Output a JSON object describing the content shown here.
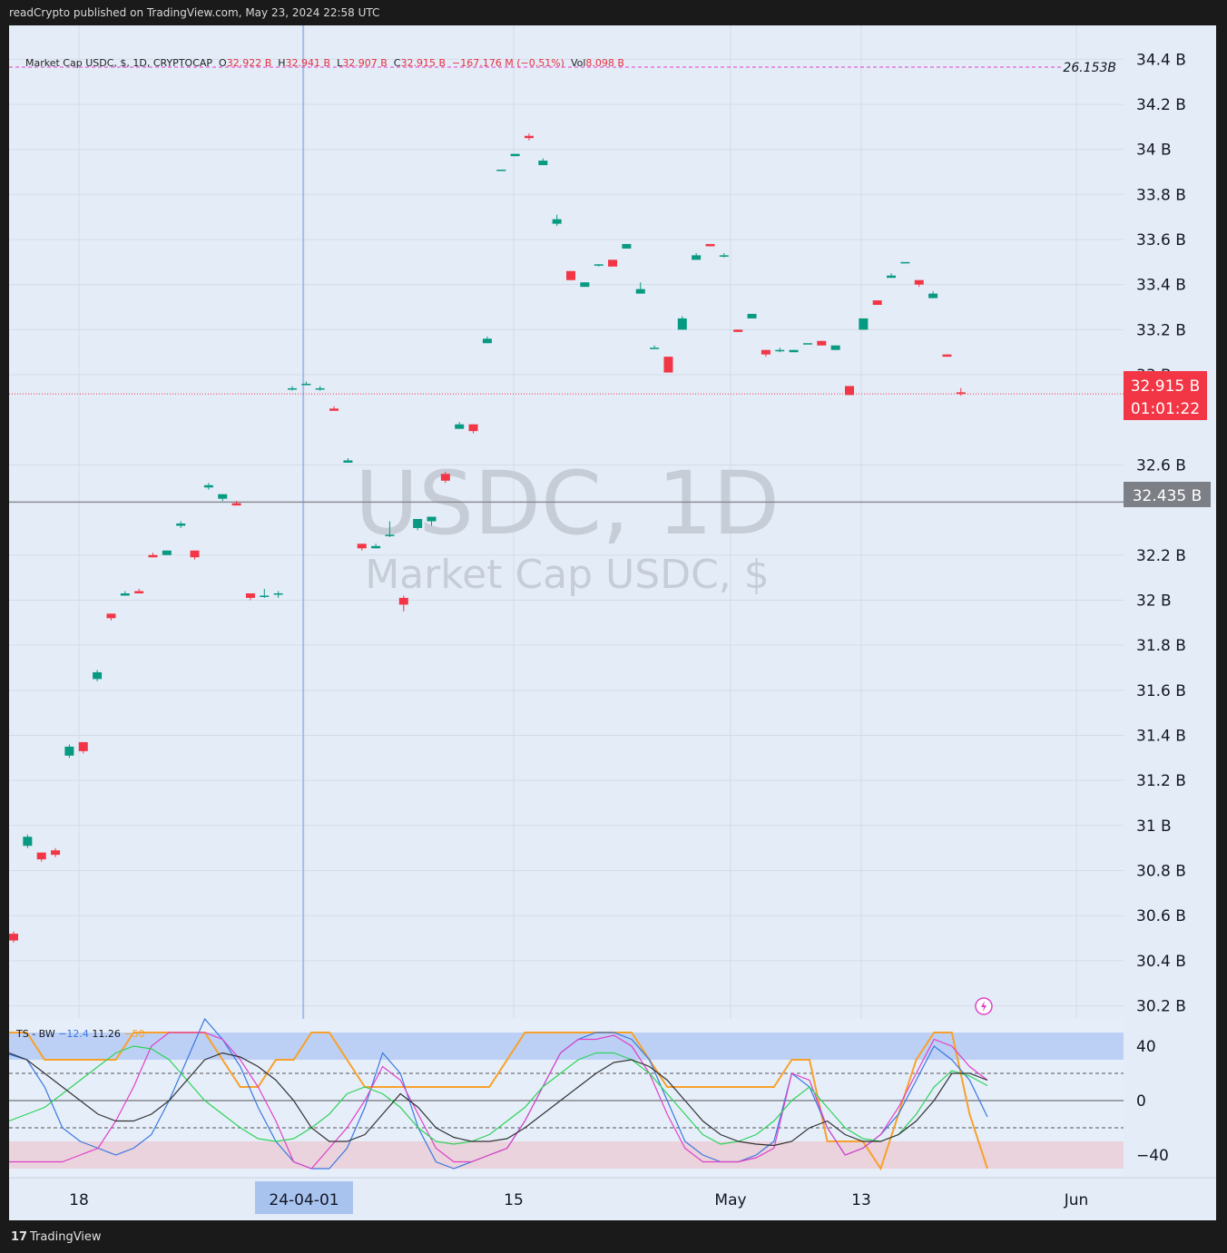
{
  "header": {
    "published": "readCrypto published on TradingView.com, May 23, 2024 22:58 UTC"
  },
  "legend": {
    "symbol": "Market Cap USDC, $, 1D, CRYPTOCAP",
    "open_label": "O",
    "open": "32.922 B",
    "high_label": "H",
    "high": "32.941 B",
    "low_label": "L",
    "low": "32.907 B",
    "close_label": "C",
    "close": "32.915 B",
    "change": "−167.176 M (−0.51%)",
    "vol_label": "Vol",
    "vol": "8.098 B"
  },
  "watermark": {
    "line1": "USDC, 1D",
    "line2": "Market Cap USDC, $"
  },
  "price_tags": {
    "current_price": "32.915 B",
    "countdown": "01:01:22",
    "level": "32.435 B",
    "dashed_level": "26.153B"
  },
  "indicator": {
    "label": "TS - BW",
    "v1": "−12.4",
    "v2": "11.26",
    "v3": "−50",
    "ticks": [
      "40",
      "0",
      "−40"
    ]
  },
  "x_axis": {
    "labels": [
      "18",
      "24-04-01",
      "15",
      "May",
      "13",
      "Jun"
    ],
    "highlighted": "24-04-01"
  },
  "footer": {
    "brand": "TradingView"
  },
  "colors": {
    "up": "#089981",
    "down": "#f23645",
    "background": "#e4ecf8",
    "magenta": "#e040c8",
    "orange": "#f7a12a",
    "blue": "#3a78e0",
    "green": "#2fd35a",
    "black": "#333333"
  },
  "chart_data": {
    "type": "candlestick",
    "y_unit": "B",
    "ylim": [
      30.15,
      34.55
    ],
    "y_ticks": [
      30.2,
      30.4,
      30.6,
      30.8,
      31.0,
      31.2,
      31.4,
      31.6,
      31.8,
      32.0,
      32.2,
      32.6,
      33.0,
      33.2,
      33.4,
      33.6,
      33.8,
      34.0,
      34.2,
      34.4
    ],
    "y_tick_labels": [
      "30.2 B",
      "30.4 B",
      "30.6 B",
      "30.8 B",
      "31 B",
      "31.2 B",
      "31.4 B",
      "31.6 B",
      "31.8 B",
      "32 B",
      "32.2 B",
      "32.6 B",
      "33 B",
      "33.2 B",
      "33.4 B",
      "33.6 B",
      "33.8 B",
      "34 B",
      "34.2 B",
      "34.4 B"
    ],
    "horizontal_levels": [
      {
        "value": 32.435,
        "style": "solid"
      },
      {
        "value": 32.915,
        "style": "dotted-red"
      }
    ],
    "candles": [
      {
        "o": 30.52,
        "h": 30.53,
        "l": 30.48,
        "c": 30.49
      },
      {
        "o": 30.91,
        "h": 30.96,
        "l": 30.9,
        "c": 30.95
      },
      {
        "o": 30.88,
        "h": 30.88,
        "l": 30.84,
        "c": 30.85
      },
      {
        "o": 30.89,
        "h": 30.9,
        "l": 30.86,
        "c": 30.87
      },
      {
        "o": 31.31,
        "h": 31.36,
        "l": 31.3,
        "c": 31.35
      },
      {
        "o": 31.37,
        "h": 31.37,
        "l": 31.32,
        "c": 31.33
      },
      {
        "o": 31.65,
        "h": 31.69,
        "l": 31.64,
        "c": 31.68
      },
      {
        "o": 31.94,
        "h": 31.94,
        "l": 31.91,
        "c": 31.92
      },
      {
        "o": 32.02,
        "h": 32.04,
        "l": 32.02,
        "c": 32.03
      },
      {
        "o": 32.04,
        "h": 32.05,
        "l": 32.03,
        "c": 32.03
      },
      {
        "o": 32.2,
        "h": 32.21,
        "l": 32.19,
        "c": 32.19
      },
      {
        "o": 32.2,
        "h": 32.22,
        "l": 32.2,
        "c": 32.22
      },
      {
        "o": 32.33,
        "h": 32.35,
        "l": 32.32,
        "c": 32.34
      },
      {
        "o": 32.22,
        "h": 32.22,
        "l": 32.18,
        "c": 32.19
      },
      {
        "o": 32.5,
        "h": 32.52,
        "l": 32.49,
        "c": 32.51
      },
      {
        "o": 32.45,
        "h": 32.47,
        "l": 32.44,
        "c": 32.47
      },
      {
        "o": 32.43,
        "h": 32.44,
        "l": 32.42,
        "c": 32.42
      },
      {
        "o": 32.03,
        "h": 32.03,
        "l": 32.0,
        "c": 32.01
      },
      {
        "o": 32.02,
        "h": 32.05,
        "l": 32.01,
        "c": 32.02
      },
      {
        "o": 32.03,
        "h": 32.04,
        "l": 32.01,
        "c": 32.03
      },
      {
        "o": 32.94,
        "h": 32.95,
        "l": 32.93,
        "c": 32.94
      },
      {
        "o": 32.96,
        "h": 32.97,
        "l": 32.96,
        "c": 32.96
      },
      {
        "o": 32.94,
        "h": 32.95,
        "l": 32.93,
        "c": 32.94
      },
      {
        "o": 32.85,
        "h": 32.86,
        "l": 32.84,
        "c": 32.84
      },
      {
        "o": 32.61,
        "h": 32.63,
        "l": 32.61,
        "c": 32.62
      },
      {
        "o": 32.25,
        "h": 32.25,
        "l": 32.22,
        "c": 32.23
      },
      {
        "o": 32.23,
        "h": 32.25,
        "l": 32.23,
        "c": 32.24
      },
      {
        "o": 32.29,
        "h": 32.35,
        "l": 32.28,
        "c": 32.29
      },
      {
        "o": 32.01,
        "h": 32.02,
        "l": 31.95,
        "c": 31.98
      },
      {
        "o": 32.32,
        "h": 32.36,
        "l": 32.31,
        "c": 32.36
      },
      {
        "o": 32.35,
        "h": 32.37,
        "l": 32.33,
        "c": 32.37
      },
      {
        "o": 32.56,
        "h": 32.57,
        "l": 32.52,
        "c": 32.53
      },
      {
        "o": 32.76,
        "h": 32.79,
        "l": 32.76,
        "c": 32.78
      },
      {
        "o": 32.78,
        "h": 32.78,
        "l": 32.74,
        "c": 32.75
      },
      {
        "o": 33.14,
        "h": 33.17,
        "l": 33.14,
        "c": 33.16
      },
      {
        "o": 33.91,
        "h": 33.91,
        "l": 33.91,
        "c": 33.91
      },
      {
        "o": 33.97,
        "h": 33.98,
        "l": 33.97,
        "c": 33.98
      },
      {
        "o": 34.06,
        "h": 34.07,
        "l": 34.04,
        "c": 34.05
      },
      {
        "o": 33.93,
        "h": 33.96,
        "l": 33.93,
        "c": 33.95
      },
      {
        "o": 33.67,
        "h": 33.71,
        "l": 33.66,
        "c": 33.69
      },
      {
        "o": 33.46,
        "h": 33.46,
        "l": 33.42,
        "c": 33.42
      },
      {
        "o": 33.39,
        "h": 33.41,
        "l": 33.39,
        "c": 33.41
      },
      {
        "o": 33.49,
        "h": 33.49,
        "l": 33.48,
        "c": 33.49
      },
      {
        "o": 33.51,
        "h": 33.51,
        "l": 33.48,
        "c": 33.48
      },
      {
        "o": 33.56,
        "h": 33.58,
        "l": 33.56,
        "c": 33.58
      },
      {
        "o": 33.36,
        "h": 33.41,
        "l": 33.36,
        "c": 33.38
      },
      {
        "o": 33.12,
        "h": 33.13,
        "l": 33.12,
        "c": 33.12
      },
      {
        "o": 33.08,
        "h": 33.08,
        "l": 33.01,
        "c": 33.01
      },
      {
        "o": 33.2,
        "h": 33.26,
        "l": 33.2,
        "c": 33.25
      },
      {
        "o": 33.51,
        "h": 33.54,
        "l": 33.51,
        "c": 33.53
      },
      {
        "o": 33.58,
        "h": 33.58,
        "l": 33.57,
        "c": 33.57
      },
      {
        "o": 33.53,
        "h": 33.54,
        "l": 33.52,
        "c": 33.53
      },
      {
        "o": 33.2,
        "h": 33.2,
        "l": 33.19,
        "c": 33.19
      },
      {
        "o": 33.25,
        "h": 33.27,
        "l": 33.25,
        "c": 33.27
      },
      {
        "o": 33.11,
        "h": 33.11,
        "l": 33.08,
        "c": 33.09
      },
      {
        "o": 33.11,
        "h": 33.12,
        "l": 33.1,
        "c": 33.11
      },
      {
        "o": 33.1,
        "h": 33.11,
        "l": 33.1,
        "c": 33.11
      },
      {
        "o": 33.14,
        "h": 33.14,
        "l": 33.14,
        "c": 33.14
      },
      {
        "o": 33.15,
        "h": 33.15,
        "l": 33.13,
        "c": 33.13
      },
      {
        "o": 33.11,
        "h": 33.13,
        "l": 33.11,
        "c": 33.13
      },
      {
        "o": 32.95,
        "h": 32.95,
        "l": 32.91,
        "c": 32.91
      },
      {
        "o": 33.2,
        "h": 33.25,
        "l": 33.2,
        "c": 33.25
      },
      {
        "o": 33.33,
        "h": 33.33,
        "l": 33.31,
        "c": 33.31
      },
      {
        "o": 33.43,
        "h": 33.45,
        "l": 33.43,
        "c": 33.44
      },
      {
        "o": 33.5,
        "h": 33.5,
        "l": 33.5,
        "c": 33.5
      },
      {
        "o": 33.42,
        "h": 33.42,
        "l": 33.39,
        "c": 33.4
      },
      {
        "o": 33.34,
        "h": 33.37,
        "l": 33.34,
        "c": 33.36
      },
      {
        "o": 33.09,
        "h": 33.09,
        "l": 33.08,
        "c": 33.08
      },
      {
        "o": 32.922,
        "h": 32.941,
        "l": 32.907,
        "c": 32.915
      }
    ],
    "oscillator": {
      "ylim": [
        -50,
        50
      ],
      "bands": [
        {
          "from": 30,
          "to": 50,
          "color": "blue"
        },
        {
          "from": -30,
          "to": -50,
          "color": "red"
        }
      ],
      "levels": [
        20,
        0,
        -20
      ],
      "blue": [
        34,
        30,
        10,
        -20,
        -30,
        -35,
        -40,
        -35,
        -25,
        0,
        30,
        60,
        45,
        25,
        -5,
        -30,
        -45,
        -50,
        -50,
        -35,
        -5,
        35,
        20,
        -20,
        -45,
        -50,
        -45,
        -40,
        -35,
        -15,
        10,
        35,
        45,
        50,
        50,
        45,
        30,
        0,
        -30,
        -40,
        -45,
        -45,
        -40,
        -30,
        20,
        10,
        -20,
        -40,
        -35,
        -25,
        -10,
        15,
        40,
        30,
        15,
        -12
      ],
      "magenta": [
        -45,
        -45,
        -45,
        -45,
        -40,
        -35,
        -15,
        10,
        40,
        50,
        50,
        50,
        45,
        30,
        10,
        -15,
        -45,
        -50,
        -35,
        -20,
        0,
        25,
        15,
        -10,
        -35,
        -45,
        -45,
        -40,
        -35,
        -15,
        10,
        35,
        45,
        45,
        48,
        40,
        20,
        -10,
        -35,
        -45,
        -45,
        -45,
        -42,
        -35,
        20,
        15,
        -20,
        -40,
        -35,
        -25,
        -5,
        20,
        45,
        40,
        25,
        15
      ],
      "green": [
        -15,
        -10,
        -5,
        5,
        15,
        25,
        35,
        40,
        38,
        30,
        15,
        0,
        -10,
        -20,
        -28,
        -30,
        -28,
        -20,
        -10,
        5,
        10,
        5,
        -5,
        -20,
        -30,
        -32,
        -30,
        -25,
        -15,
        -5,
        10,
        20,
        30,
        35,
        35,
        30,
        20,
        5,
        -10,
        -25,
        -32,
        -30,
        -25,
        -15,
        0,
        10,
        -5,
        -20,
        -28,
        -30,
        -25,
        -10,
        10,
        22,
        18,
        11
      ],
      "black": [
        35,
        30,
        20,
        10,
        0,
        -10,
        -15,
        -15,
        -10,
        0,
        15,
        30,
        35,
        32,
        25,
        15,
        0,
        -20,
        -30,
        -30,
        -25,
        -10,
        5,
        -5,
        -20,
        -27,
        -30,
        -30,
        -28,
        -20,
        -10,
        0,
        10,
        20,
        28,
        30,
        25,
        15,
        0,
        -15,
        -25,
        -30,
        -32,
        -33,
        -30,
        -20,
        -15,
        -25,
        -30,
        -30,
        -25,
        -15,
        0,
        20,
        20,
        15
      ],
      "orange": [
        50,
        50,
        30,
        30,
        30,
        30,
        30,
        50,
        50,
        50,
        50,
        50,
        30,
        10,
        10,
        30,
        30,
        50,
        50,
        30,
        10,
        10,
        10,
        10,
        10,
        10,
        10,
        10,
        30,
        50,
        50,
        50,
        50,
        50,
        50,
        50,
        30,
        10,
        10,
        10,
        10,
        10,
        10,
        10,
        30,
        30,
        -30,
        -30,
        -30,
        -50,
        -10,
        30,
        50,
        50,
        -10,
        -50
      ]
    }
  }
}
